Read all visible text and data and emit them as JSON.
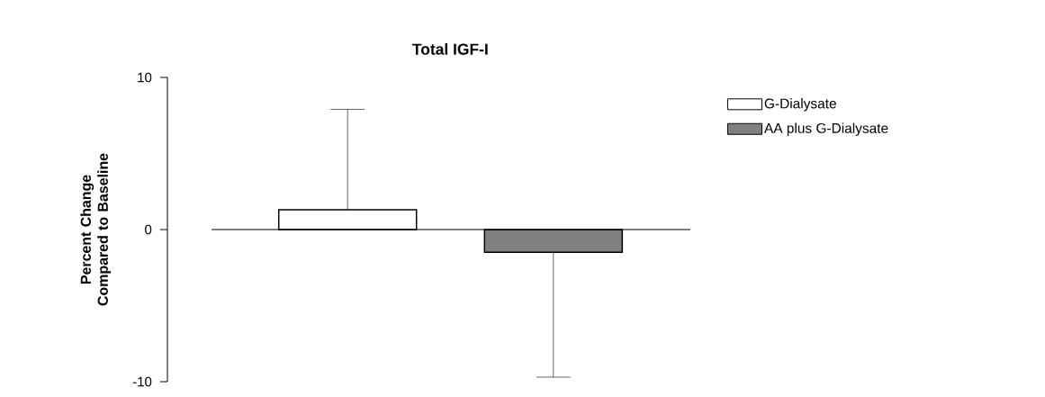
{
  "chart_data": {
    "type": "bar",
    "title": "Total IGF-I",
    "ylabel": "Percent Change Compared to Baseline",
    "categories": [
      null
    ],
    "series": [
      {
        "name": "G-Dialysate",
        "color": "#ffffff",
        "values": [
          1.3
        ],
        "errors": [
          [
            1.3,
            7.9
          ]
        ]
      },
      {
        "name": "AA plus G-Dialysate",
        "color": "#808080",
        "values": [
          -1.5
        ],
        "errors": [
          [
            -9.7,
            -1.5
          ]
        ]
      }
    ],
    "ylim": [
      -10,
      10
    ],
    "yticks": [
      -10,
      0,
      10
    ],
    "legend": "right"
  }
}
